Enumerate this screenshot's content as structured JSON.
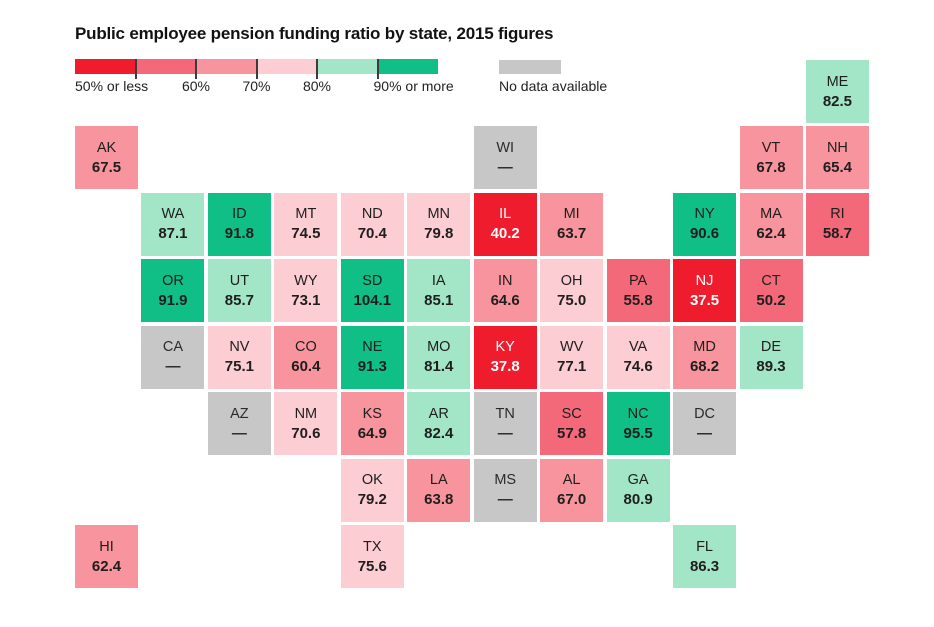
{
  "title": "Public employee pension funding ratio by state, 2015 figures",
  "legend": {
    "bar_labels": [
      "50% or less",
      "60%",
      "70%",
      "80%",
      "90% or more"
    ],
    "segment_colors": [
      "#ee1c2d",
      "#f4697a",
      "#f8949d",
      "#fccdd3",
      "#a2e5c7",
      "#10bf85"
    ],
    "no_data_label": "No data available",
    "no_data_color": "#c7c7c7"
  },
  "chart_data": {
    "type": "heatmap",
    "title": "Public employee pension funding ratio by state, 2015 figures",
    "value_label": "pension funding ratio (%)",
    "no_data_display": "—",
    "color_scale": [
      {
        "bucket": "red",
        "range": "50% or less",
        "color": "#ee1c2d",
        "text_color": "#ffffff"
      },
      {
        "bucket": "rose",
        "range": "50% to 60%",
        "color": "#f4697a",
        "text_color": "#1e1e1e"
      },
      {
        "bucket": "salmon",
        "range": "60% to 70%",
        "color": "#f8949d",
        "text_color": "#1e1e1e"
      },
      {
        "bucket": "pink",
        "range": "70% to 80%",
        "color": "#fccdd3",
        "text_color": "#1e1e1e"
      },
      {
        "bucket": "lightgreen",
        "range": "80% to 90%",
        "color": "#a2e5c7",
        "text_color": "#1e1e1e"
      },
      {
        "bucket": "green",
        "range": "90% or more",
        "color": "#10bf85",
        "text_color": "#1e1e1e"
      },
      {
        "bucket": "gray",
        "range": "No data available",
        "color": "#c7c7c7",
        "text_color": "#2b2b2b"
      }
    ],
    "states": [
      {
        "abbr": "ME",
        "value": "82.5",
        "row": 0,
        "col": 11,
        "bucket": "lightgreen"
      },
      {
        "abbr": "AK",
        "value": "67.5",
        "row": 1,
        "col": 0,
        "bucket": "salmon"
      },
      {
        "abbr": "WI",
        "value": null,
        "row": 1,
        "col": 6,
        "bucket": "gray"
      },
      {
        "abbr": "VT",
        "value": "67.8",
        "row": 1,
        "col": 10,
        "bucket": "salmon"
      },
      {
        "abbr": "NH",
        "value": "65.4",
        "row": 1,
        "col": 11,
        "bucket": "salmon"
      },
      {
        "abbr": "WA",
        "value": "87.1",
        "row": 2,
        "col": 1,
        "bucket": "lightgreen"
      },
      {
        "abbr": "ID",
        "value": "91.8",
        "row": 2,
        "col": 2,
        "bucket": "green"
      },
      {
        "abbr": "MT",
        "value": "74.5",
        "row": 2,
        "col": 3,
        "bucket": "pink"
      },
      {
        "abbr": "ND",
        "value": "70.4",
        "row": 2,
        "col": 4,
        "bucket": "pink"
      },
      {
        "abbr": "MN",
        "value": "79.8",
        "row": 2,
        "col": 5,
        "bucket": "pink"
      },
      {
        "abbr": "IL",
        "value": "40.2",
        "row": 2,
        "col": 6,
        "bucket": "red"
      },
      {
        "abbr": "MI",
        "value": "63.7",
        "row": 2,
        "col": 7,
        "bucket": "salmon"
      },
      {
        "abbr": "NY",
        "value": "90.6",
        "row": 2,
        "col": 9,
        "bucket": "green"
      },
      {
        "abbr": "MA",
        "value": "62.4",
        "row": 2,
        "col": 10,
        "bucket": "salmon"
      },
      {
        "abbr": "RI",
        "value": "58.7",
        "row": 2,
        "col": 11,
        "bucket": "rose"
      },
      {
        "abbr": "OR",
        "value": "91.9",
        "row": 3,
        "col": 1,
        "bucket": "green"
      },
      {
        "abbr": "UT",
        "value": "85.7",
        "row": 3,
        "col": 2,
        "bucket": "lightgreen"
      },
      {
        "abbr": "WY",
        "value": "73.1",
        "row": 3,
        "col": 3,
        "bucket": "pink"
      },
      {
        "abbr": "SD",
        "value": "104.1",
        "row": 3,
        "col": 4,
        "bucket": "green"
      },
      {
        "abbr": "IA",
        "value": "85.1",
        "row": 3,
        "col": 5,
        "bucket": "lightgreen"
      },
      {
        "abbr": "IN",
        "value": "64.6",
        "row": 3,
        "col": 6,
        "bucket": "salmon"
      },
      {
        "abbr": "OH",
        "value": "75.0",
        "row": 3,
        "col": 7,
        "bucket": "pink"
      },
      {
        "abbr": "PA",
        "value": "55.8",
        "row": 3,
        "col": 8,
        "bucket": "rose"
      },
      {
        "abbr": "NJ",
        "value": "37.5",
        "row": 3,
        "col": 9,
        "bucket": "red"
      },
      {
        "abbr": "CT",
        "value": "50.2",
        "row": 3,
        "col": 10,
        "bucket": "rose"
      },
      {
        "abbr": "CA",
        "value": null,
        "row": 4,
        "col": 1,
        "bucket": "gray"
      },
      {
        "abbr": "NV",
        "value": "75.1",
        "row": 4,
        "col": 2,
        "bucket": "pink"
      },
      {
        "abbr": "CO",
        "value": "60.4",
        "row": 4,
        "col": 3,
        "bucket": "salmon"
      },
      {
        "abbr": "NE",
        "value": "91.3",
        "row": 4,
        "col": 4,
        "bucket": "green"
      },
      {
        "abbr": "MO",
        "value": "81.4",
        "row": 4,
        "col": 5,
        "bucket": "lightgreen"
      },
      {
        "abbr": "KY",
        "value": "37.8",
        "row": 4,
        "col": 6,
        "bucket": "red"
      },
      {
        "abbr": "WV",
        "value": "77.1",
        "row": 4,
        "col": 7,
        "bucket": "pink"
      },
      {
        "abbr": "VA",
        "value": "74.6",
        "row": 4,
        "col": 8,
        "bucket": "pink"
      },
      {
        "abbr": "MD",
        "value": "68.2",
        "row": 4,
        "col": 9,
        "bucket": "salmon"
      },
      {
        "abbr": "DE",
        "value": "89.3",
        "row": 4,
        "col": 10,
        "bucket": "lightgreen"
      },
      {
        "abbr": "AZ",
        "value": null,
        "row": 5,
        "col": 2,
        "bucket": "gray"
      },
      {
        "abbr": "NM",
        "value": "70.6",
        "row": 5,
        "col": 3,
        "bucket": "pink"
      },
      {
        "abbr": "KS",
        "value": "64.9",
        "row": 5,
        "col": 4,
        "bucket": "salmon"
      },
      {
        "abbr": "AR",
        "value": "82.4",
        "row": 5,
        "col": 5,
        "bucket": "lightgreen"
      },
      {
        "abbr": "TN",
        "value": null,
        "row": 5,
        "col": 6,
        "bucket": "gray"
      },
      {
        "abbr": "SC",
        "value": "57.8",
        "row": 5,
        "col": 7,
        "bucket": "rose"
      },
      {
        "abbr": "NC",
        "value": "95.5",
        "row": 5,
        "col": 8,
        "bucket": "green"
      },
      {
        "abbr": "DC",
        "value": null,
        "row": 5,
        "col": 9,
        "bucket": "gray"
      },
      {
        "abbr": "OK",
        "value": "79.2",
        "row": 6,
        "col": 4,
        "bucket": "pink"
      },
      {
        "abbr": "LA",
        "value": "63.8",
        "row": 6,
        "col": 5,
        "bucket": "salmon"
      },
      {
        "abbr": "MS",
        "value": null,
        "row": 6,
        "col": 6,
        "bucket": "gray"
      },
      {
        "abbr": "AL",
        "value": "67.0",
        "row": 6,
        "col": 7,
        "bucket": "salmon"
      },
      {
        "abbr": "GA",
        "value": "80.9",
        "row": 6,
        "col": 8,
        "bucket": "lightgreen"
      },
      {
        "abbr": "HI",
        "value": "62.4",
        "row": 7,
        "col": 0,
        "bucket": "salmon"
      },
      {
        "abbr": "TX",
        "value": "75.6",
        "row": 7,
        "col": 4,
        "bucket": "pink"
      },
      {
        "abbr": "FL",
        "value": "86.3",
        "row": 7,
        "col": 9,
        "bucket": "lightgreen"
      }
    ]
  }
}
